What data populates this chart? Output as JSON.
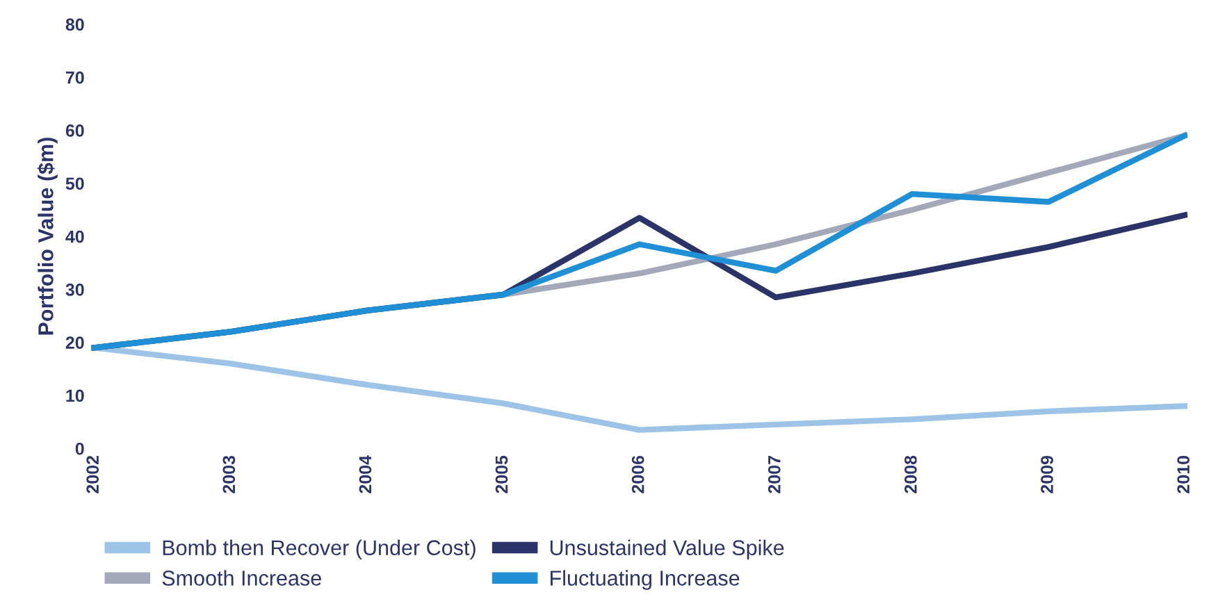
{
  "chart_data": {
    "type": "line",
    "ylabel": "Portfolio Value ($m)",
    "categories": [
      "2002",
      "2003",
      "2004",
      "2005",
      "2006",
      "2007",
      "2008",
      "2009",
      "2010"
    ],
    "ylim": [
      0,
      80
    ],
    "yticks": [
      0,
      10,
      20,
      30,
      40,
      50,
      60,
      70,
      80
    ],
    "grid": false,
    "legend": "bottom",
    "marker": "none",
    "line_style": "solid",
    "series": [
      {
        "name": "Smooth Increase",
        "color": "#a3a9b9",
        "values": [
          19,
          22,
          26,
          29,
          33,
          38.5,
          45,
          52,
          59
        ]
      },
      {
        "name": "Bomb then Recover (Under Cost)",
        "color": "#9dc3e6",
        "values": [
          19,
          16,
          12,
          8.5,
          3.5,
          4.5,
          5.5,
          7,
          8
        ]
      },
      {
        "name": "Unsustained Value Spike",
        "color": "#2b3468",
        "values": [
          19,
          22,
          26,
          29,
          43.5,
          28.5,
          33,
          38,
          44
        ]
      },
      {
        "name": "Fluctuating Increase",
        "color": "#1f8fd6",
        "values": [
          19,
          22,
          26,
          29,
          38.5,
          33.5,
          48,
          46.5,
          59
        ]
      }
    ]
  }
}
